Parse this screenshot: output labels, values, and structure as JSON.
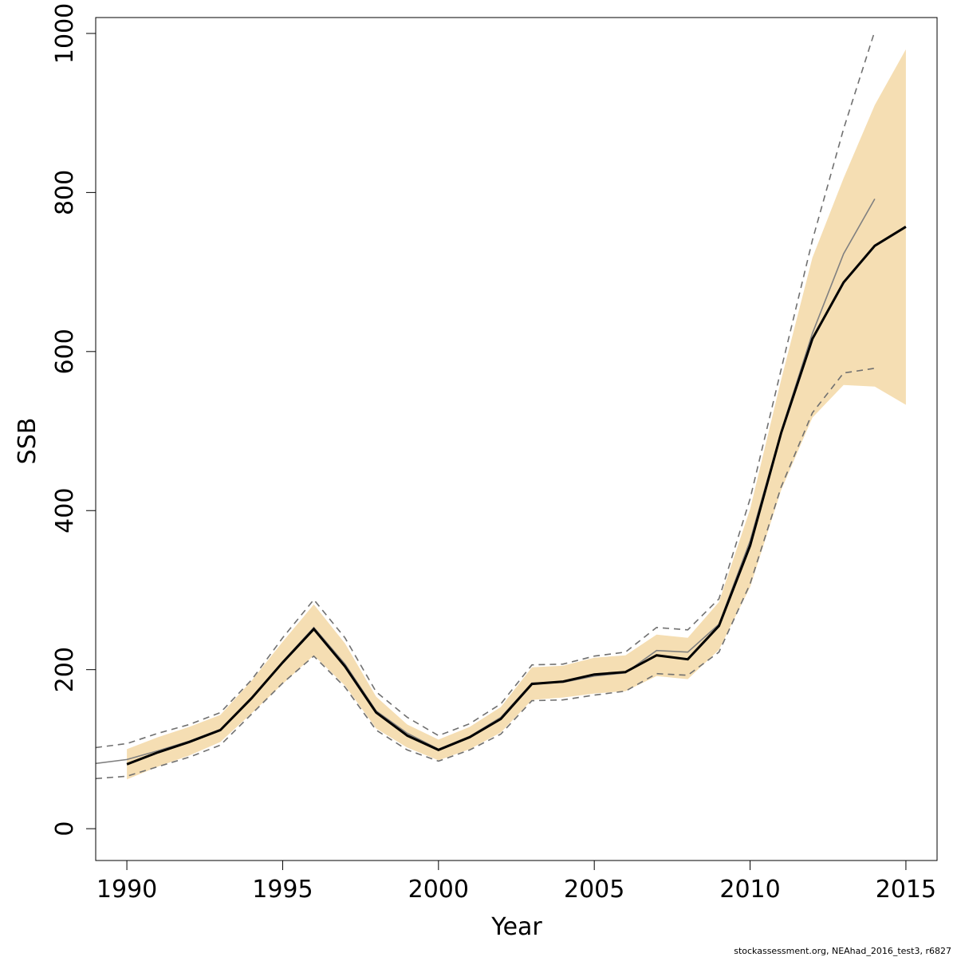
{
  "chart_data": {
    "type": "line",
    "xlabel": "Year",
    "ylabel": "SSB",
    "xlim": [
      1989,
      2016
    ],
    "ylim": [
      -40,
      1020
    ],
    "x_ticks": [
      1990,
      1995,
      2000,
      2005,
      2010,
      2015
    ],
    "x_tick_labels": [
      "1990",
      "1995",
      "2000",
      "2005",
      "2010",
      "2015"
    ],
    "y_ticks": [
      0,
      200,
      400,
      600,
      800,
      1000
    ],
    "y_tick_labels": [
      "0",
      "200",
      "400",
      "600",
      "800",
      "1000"
    ],
    "grid": false,
    "legend": "none",
    "colors": {
      "band": "#f5deb3",
      "estimate": "#000000",
      "previous": "#808080",
      "previous_ci": "#707070",
      "axis": "#000000"
    },
    "estimate": {
      "x": [
        1990,
        1991,
        1992,
        1993,
        1994,
        1995,
        1996,
        1997,
        1998,
        1999,
        2000,
        2001,
        2002,
        2003,
        2004,
        2005,
        2006,
        2007,
        2008,
        2009,
        2010,
        2011,
        2012,
        2013,
        2014,
        2015
      ],
      "y": [
        81,
        96,
        109,
        124,
        164,
        209,
        251,
        204,
        146,
        117,
        99,
        115,
        138,
        182,
        185,
        194,
        197,
        218,
        213,
        255,
        356,
        498,
        616,
        687,
        733,
        757
      ],
      "lower": [
        62,
        78,
        92,
        109,
        145,
        182,
        218,
        180,
        126,
        102,
        86,
        100,
        121,
        162,
        165,
        170,
        173,
        192,
        188,
        225,
        304,
        426,
        517,
        558,
        556,
        533
      ],
      "upper": [
        100,
        115,
        128,
        143,
        186,
        235,
        282,
        233,
        166,
        131,
        112,
        128,
        153,
        203,
        205,
        215,
        218,
        244,
        240,
        285,
        402,
        565,
        718,
        818,
        910,
        980
      ]
    },
    "previous": {
      "x": [
        1989,
        1990,
        1991,
        1992,
        1993,
        1994,
        1995,
        1996,
        1997,
        1998,
        1999,
        2000,
        2001,
        2002,
        2003,
        2004,
        2005,
        2006,
        2007,
        2008,
        2009,
        2010,
        2011,
        2012,
        2013,
        2014
      ],
      "y": [
        82,
        87,
        98,
        110,
        125,
        165,
        210,
        253,
        207,
        148,
        120,
        100,
        116,
        140,
        183,
        184,
        192,
        196,
        224,
        222,
        257,
        362,
        500,
        623,
        723,
        792
      ],
      "lower": [
        63,
        66,
        78,
        90,
        105,
        144,
        183,
        217,
        178,
        124,
        99,
        85,
        99,
        119,
        161,
        162,
        168,
        173,
        195,
        193,
        222,
        308,
        430,
        523,
        573,
        579
      ],
      "upper": [
        102,
        107,
        120,
        131,
        146,
        187,
        240,
        288,
        240,
        172,
        140,
        117,
        132,
        157,
        206,
        207,
        217,
        222,
        253,
        250,
        289,
        415,
        578,
        740,
        880,
        1003
      ]
    },
    "footnote": "stockassessment.org, NEAhad_2016_test3, r6827"
  }
}
